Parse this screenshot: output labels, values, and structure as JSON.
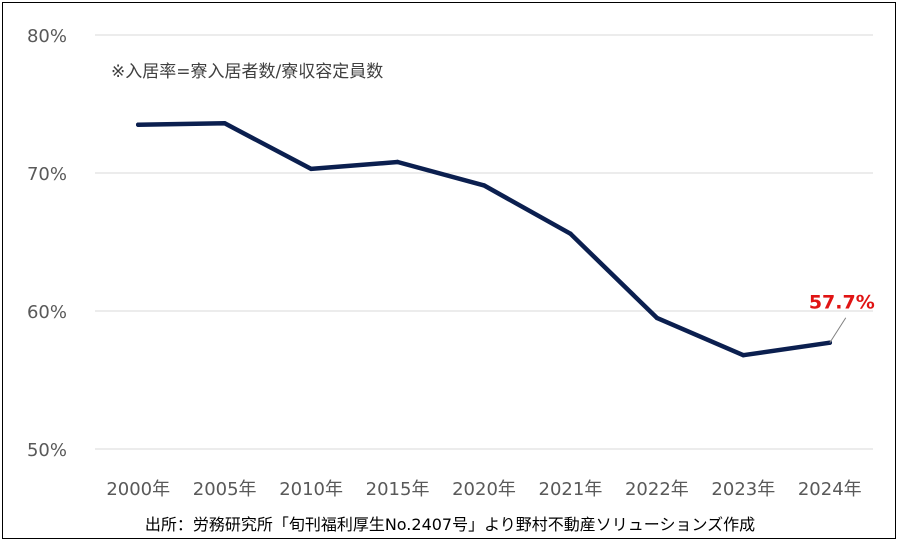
{
  "chart_data": {
    "type": "line",
    "title": "",
    "xlabel": "",
    "ylabel": "",
    "categories": [
      "2000年",
      "2005年",
      "2010年",
      "2015年",
      "2020年",
      "2021年",
      "2022年",
      "2023年",
      "2024年"
    ],
    "series": [
      {
        "name": "入居率",
        "values": [
          73.5,
          73.6,
          70.3,
          70.8,
          69.1,
          65.6,
          59.5,
          56.8,
          57.7
        ],
        "color": "#0b1f4f"
      }
    ],
    "ylim": [
      50,
      80
    ],
    "yticks": [
      50,
      60,
      70,
      80
    ],
    "ytick_labels": [
      "50%",
      "60%",
      "70%",
      "80%"
    ],
    "grid": true,
    "annotation_note": "※入居率=寮入居者数/寮収容定員数",
    "data_label": {
      "text": "57.7%",
      "color": "#e01414"
    },
    "source": "出所：労務研究所「旬刊福利厚生No.2407号」より野村不動産ソリューションズ作成"
  },
  "colors": {
    "gridline": "#d9d9d9",
    "tick_text": "#595959"
  }
}
